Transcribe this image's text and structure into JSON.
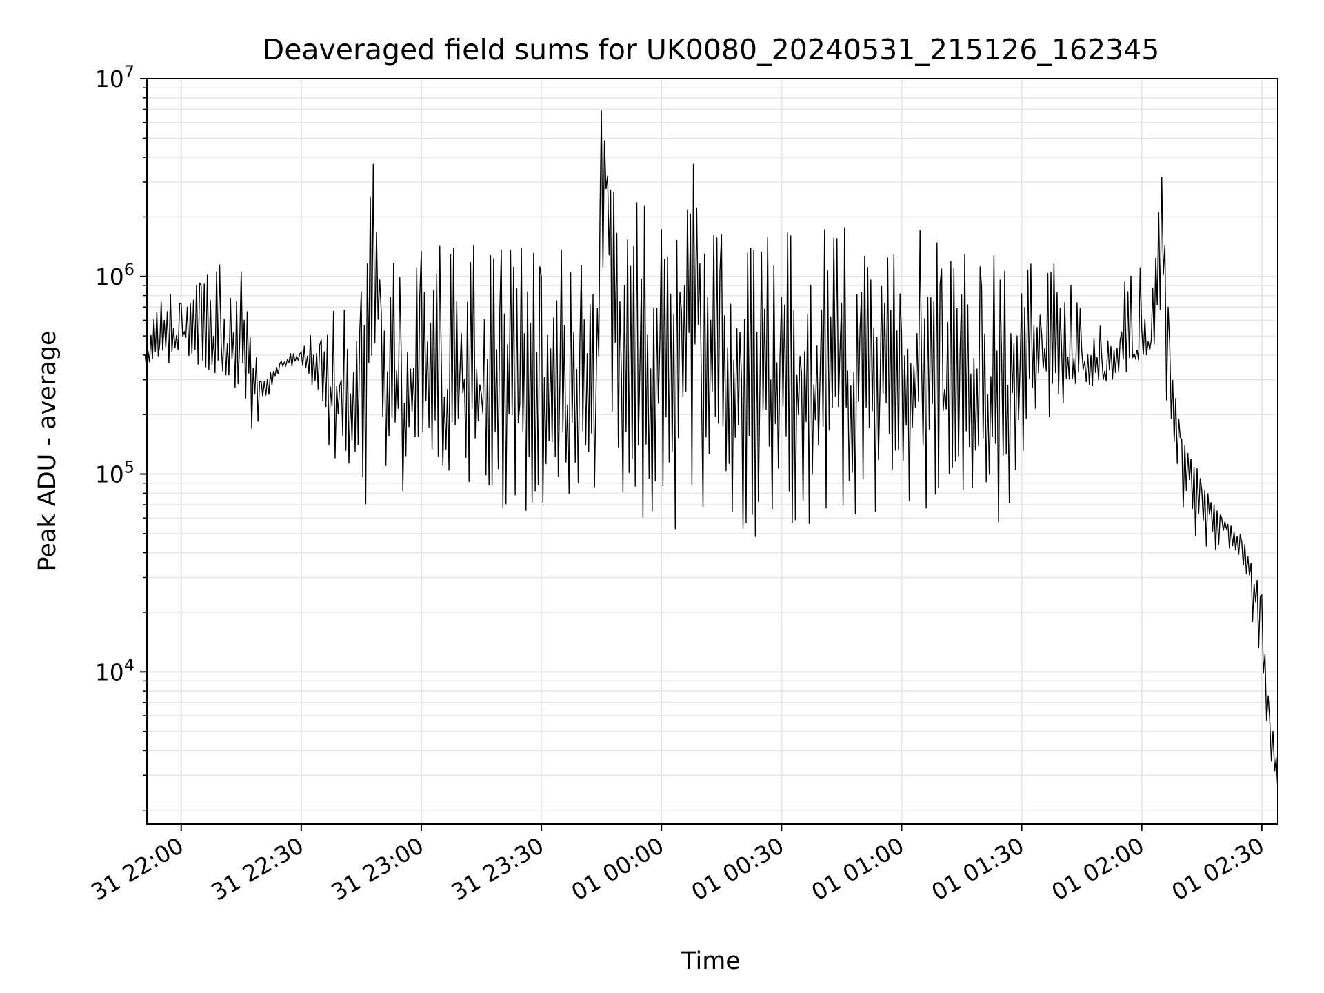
{
  "chart_data": {
    "type": "line",
    "title": "Deaveraged field sums for UK0080_20240531_215126_162345",
    "xlabel": "Time",
    "ylabel": "Peak ADU - average",
    "yscale": "log",
    "ylim": [
      1700,
      10000000
    ],
    "xlim": [
      "2024-05-31 21:51:26",
      "2024-06-01 02:34:00"
    ],
    "grid": true,
    "line_color": "#000000",
    "grid_color": "#e6e6e6",
    "x_ticks": [
      {
        "value": "2024-05-31 22:00",
        "label": "31 22:00"
      },
      {
        "value": "2024-05-31 22:30",
        "label": "31 22:30"
      },
      {
        "value": "2024-05-31 23:00",
        "label": "31 23:00"
      },
      {
        "value": "2024-05-31 23:30",
        "label": "31 23:30"
      },
      {
        "value": "2024-06-01 00:00",
        "label": "01 00:00"
      },
      {
        "value": "2024-06-01 00:30",
        "label": "01 00:30"
      },
      {
        "value": "2024-06-01 01:00",
        "label": "01 01:00"
      },
      {
        "value": "2024-06-01 01:30",
        "label": "01 01:30"
      },
      {
        "value": "2024-06-01 02:00",
        "label": "01 02:00"
      },
      {
        "value": "2024-06-01 02:30",
        "label": "01 02:30"
      }
    ],
    "y_ticks": [
      {
        "value": 10000,
        "base": "10",
        "exp": "4"
      },
      {
        "value": 100000,
        "base": "10",
        "exp": "5"
      },
      {
        "value": 1000000,
        "base": "10",
        "exp": "6"
      },
      {
        "value": 10000000,
        "base": "10",
        "exp": "7"
      }
    ],
    "series": [
      {
        "x": [
          "2024-05-31 21:51",
          "2024-05-31 21:55",
          "2024-05-31 22:00",
          "2024-05-31 22:05",
          "2024-05-31 22:10",
          "2024-05-31 22:15",
          "2024-05-31 22:18",
          "2024-05-31 22:20",
          "2024-05-31 22:25",
          "2024-05-31 22:30",
          "2024-05-31 22:35",
          "2024-05-31 22:40",
          "2024-05-31 22:45",
          "2024-05-31 22:48",
          "2024-05-31 22:50",
          "2024-05-31 22:55",
          "2024-05-31 23:00",
          "2024-05-31 23:05",
          "2024-05-31 23:10",
          "2024-05-31 23:15",
          "2024-05-31 23:20",
          "2024-05-31 23:25",
          "2024-05-31 23:30",
          "2024-05-31 23:35",
          "2024-05-31 23:40",
          "2024-05-31 23:44",
          "2024-05-31 23:45",
          "2024-05-31 23:50",
          "2024-05-31 23:55",
          "2024-06-01 00:00",
          "2024-06-01 00:05",
          "2024-06-01 00:08",
          "2024-06-01 00:10",
          "2024-06-01 00:15",
          "2024-06-01 00:20",
          "2024-06-01 00:25",
          "2024-06-01 00:30",
          "2024-06-01 00:35",
          "2024-06-01 00:40",
          "2024-06-01 00:45",
          "2024-06-01 00:50",
          "2024-06-01 00:55",
          "2024-06-01 01:00",
          "2024-06-01 01:05",
          "2024-06-01 01:10",
          "2024-06-01 01:15",
          "2024-06-01 01:20",
          "2024-06-01 01:25",
          "2024-06-01 01:30",
          "2024-06-01 01:35",
          "2024-06-01 01:40",
          "2024-06-01 01:45",
          "2024-06-01 01:50",
          "2024-06-01 01:55",
          "2024-06-01 02:00",
          "2024-06-01 02:02",
          "2024-06-01 02:05",
          "2024-06-01 02:07",
          "2024-06-01 02:10",
          "2024-06-01 02:15",
          "2024-06-01 02:20",
          "2024-06-01 02:25",
          "2024-06-01 02:30",
          "2024-06-01 02:32",
          "2024-06-01 02:34"
        ],
        "y": [
          400000,
          450000,
          500000,
          500000,
          450000,
          380000,
          320000,
          250000,
          350000,
          400000,
          300000,
          200000,
          180000,
          3700000,
          200000,
          220000,
          250000,
          200000,
          300000,
          250000,
          280000,
          220000,
          240000,
          200000,
          250000,
          200000,
          6900000,
          280000,
          260000,
          300000,
          250000,
          3700000,
          270000,
          260000,
          250000,
          260000,
          270000,
          270000,
          270000,
          260000,
          270000,
          260000,
          280000,
          260000,
          250000,
          240000,
          240000,
          250000,
          300000,
          350000,
          400000,
          350000,
          320000,
          380000,
          400000,
          420000,
          3200000,
          300000,
          150000,
          75000,
          60000,
          45000,
          20000,
          5000,
          2500
        ],
        "y_min_envelope": [
          330000,
          350000,
          380000,
          350000,
          300000,
          260000,
          150000,
          190000,
          350000,
          350000,
          170000,
          95000,
          48000,
          80000,
          80000,
          70000,
          120000,
          110000,
          85000,
          75000,
          65000,
          60000,
          60000,
          65000,
          70000,
          60000,
          70000,
          65000,
          60000,
          55000,
          50000,
          48000,
          55000,
          55000,
          52000,
          44000,
          58000,
          55000,
          55000,
          54000,
          58000,
          56000,
          60000,
          65000,
          68000,
          62000,
          60000,
          50000,
          95000,
          180000,
          220000,
          250000,
          280000,
          300000,
          380000,
          400000,
          250000,
          200000,
          70000,
          40000,
          40000,
          30000,
          9000,
          3500,
          2300
        ],
        "y_max_envelope": [
          600000,
          900000,
          800000,
          1100000,
          1300000,
          1200000,
          700000,
          300000,
          400000,
          420000,
          700000,
          830000,
          1000000,
          3700000,
          1000000,
          1400000,
          1400000,
          1500000,
          1400000,
          1500000,
          1450000,
          1500000,
          1500000,
          1500000,
          1500000,
          1800000,
          6900000,
          1800000,
          3000000,
          1800000,
          1800000,
          3700000,
          1800000,
          1800000,
          1750000,
          1800000,
          1800000,
          1900000,
          1850000,
          1900000,
          1800000,
          1750000,
          1900000,
          1700000,
          1600000,
          1350000,
          1300000,
          1300000,
          1000000,
          1400000,
          1100000,
          900000,
          700000,
          1000000,
          1800000,
          600000,
          3200000,
          500000,
          150000,
          100000,
          60000,
          50000,
          25000,
          6000,
          4000
        ]
      }
    ]
  }
}
